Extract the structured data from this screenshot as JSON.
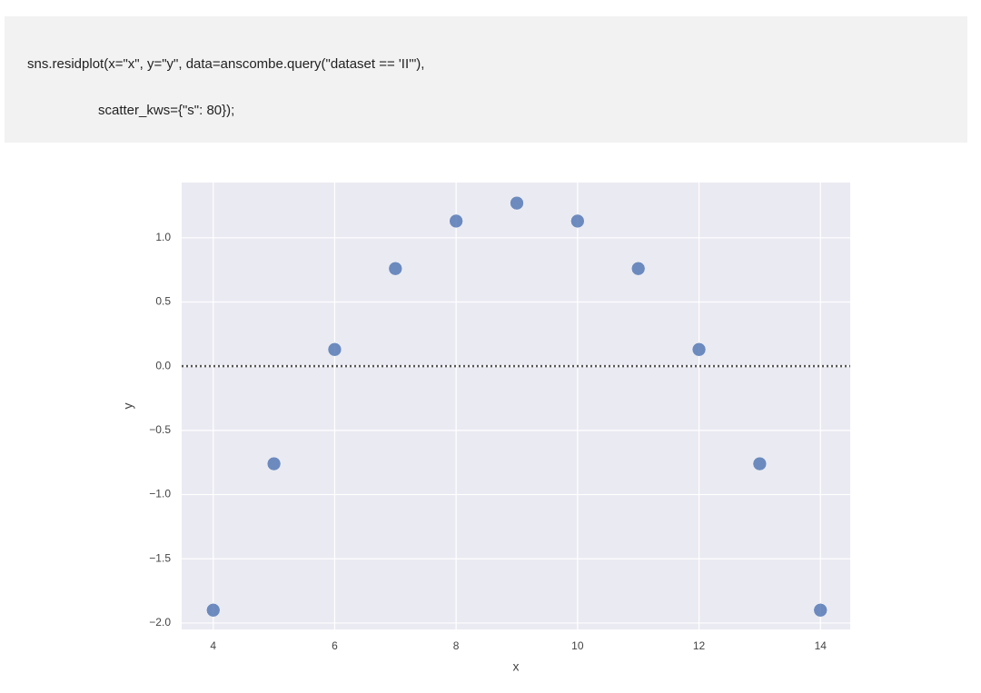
{
  "code": {
    "lines": [
      "sns.residplot(x=\"x\", y=\"y\", data=anscombe.query(\"dataset == 'II'\"),",
      "scatter_kws={\"s\": 80});"
    ]
  },
  "chart_data": {
    "type": "scatter",
    "x_label": "x",
    "y_label": "y",
    "x": [
      4,
      5,
      6,
      7,
      8,
      9,
      10,
      11,
      12,
      13,
      14
    ],
    "values": [
      -1.9,
      -0.76,
      0.13,
      0.76,
      1.13,
      1.27,
      1.13,
      0.76,
      0.13,
      -0.76,
      -1.9
    ],
    "color": "#4c72b0",
    "xlim": [
      3.48,
      14.49
    ],
    "ylim": [
      -2.05,
      1.43
    ],
    "xticks": [
      4,
      6,
      8,
      10,
      12,
      14
    ],
    "yticks": [
      {
        "value": -2,
        "label": "−2.0"
      },
      {
        "value": -1.5,
        "label": "−1.5"
      },
      {
        "value": -1,
        "label": "−1.0"
      },
      {
        "value": -0.5,
        "label": "−0.5"
      },
      {
        "value": 0,
        "label": "0.0"
      },
      {
        "value": 0.5,
        "label": "0.5"
      },
      {
        "value": 1,
        "label": "1.0"
      }
    ],
    "hline": 0,
    "grid": true
  }
}
